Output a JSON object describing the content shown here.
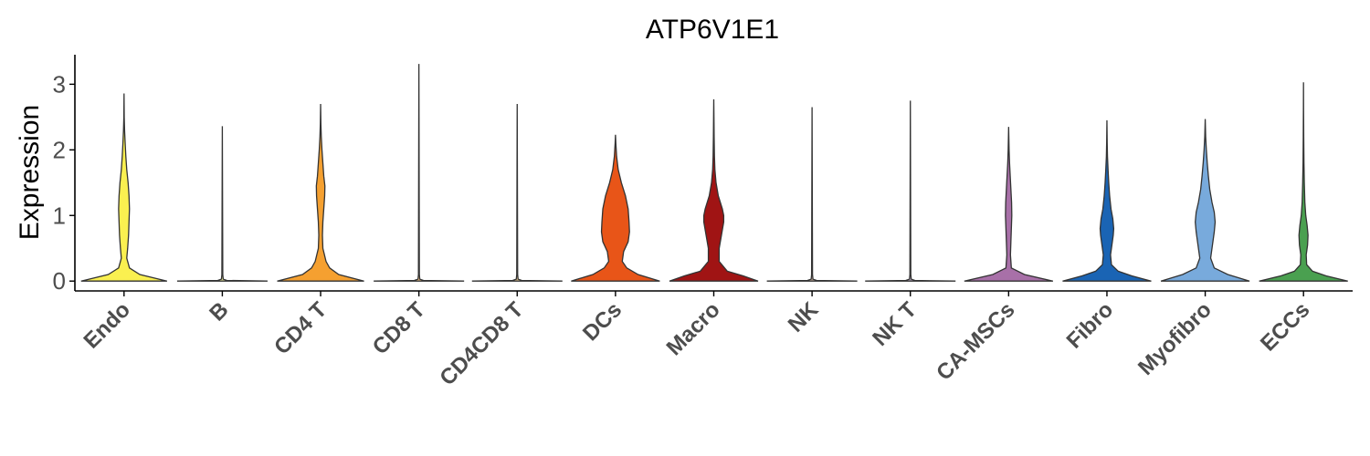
{
  "chart_data": {
    "type": "violin",
    "title": "ATP6V1E1",
    "xlabel": "",
    "ylabel": "Expression",
    "ylim": [
      -0.15,
      3.45
    ],
    "yticks": [
      0,
      1,
      2,
      3
    ],
    "grid": false,
    "legend": "none",
    "categories": [
      {
        "name": "Endo",
        "color": "#FAF050",
        "max": 2.86,
        "profile": [
          [
            0,
            0.95
          ],
          [
            0.1,
            0.35
          ],
          [
            0.2,
            0.12
          ],
          [
            0.35,
            0.06
          ],
          [
            0.5,
            0.08
          ],
          [
            0.7,
            0.1
          ],
          [
            0.9,
            0.11
          ],
          [
            1.1,
            0.12
          ],
          [
            1.3,
            0.11
          ],
          [
            1.5,
            0.09
          ],
          [
            1.7,
            0.06
          ],
          [
            1.9,
            0.04
          ],
          [
            2.1,
            0.025
          ],
          [
            2.3,
            0.012
          ],
          [
            2.5,
            0.004
          ],
          [
            2.86,
            0
          ]
        ]
      },
      {
        "name": "B",
        "color": "#F0F0A0",
        "max": 2.36,
        "profile": [
          [
            0,
            1.0
          ],
          [
            0.01,
            0.1
          ],
          [
            0.03,
            0.02
          ],
          [
            0.1,
            0.01
          ],
          [
            2.36,
            0
          ]
        ]
      },
      {
        "name": "CD4 T",
        "color": "#F5A030",
        "max": 2.7,
        "profile": [
          [
            0,
            0.96
          ],
          [
            0.1,
            0.4
          ],
          [
            0.2,
            0.2
          ],
          [
            0.3,
            0.12
          ],
          [
            0.5,
            0.05
          ],
          [
            0.7,
            0.04
          ],
          [
            0.9,
            0.05
          ],
          [
            1.1,
            0.07
          ],
          [
            1.3,
            0.09
          ],
          [
            1.45,
            0.095
          ],
          [
            1.6,
            0.07
          ],
          [
            1.8,
            0.05
          ],
          [
            2.0,
            0.03
          ],
          [
            2.2,
            0.015
          ],
          [
            2.4,
            0.006
          ],
          [
            2.7,
            0
          ]
        ]
      },
      {
        "name": "CD8 T",
        "color": "#F0C080",
        "max": 3.31,
        "profile": [
          [
            0,
            1.0
          ],
          [
            0.01,
            0.1
          ],
          [
            0.03,
            0.02
          ],
          [
            0.1,
            0.01
          ],
          [
            3.31,
            0
          ]
        ]
      },
      {
        "name": "CD4CD8 T",
        "color": "#E8C890",
        "max": 2.7,
        "profile": [
          [
            0,
            1.0
          ],
          [
            0.01,
            0.1
          ],
          [
            0.03,
            0.02
          ],
          [
            0.1,
            0.01
          ],
          [
            2.7,
            0
          ]
        ]
      },
      {
        "name": "DCs",
        "color": "#E85518",
        "max": 2.23,
        "profile": [
          [
            0,
            0.98
          ],
          [
            0.1,
            0.5
          ],
          [
            0.2,
            0.25
          ],
          [
            0.3,
            0.15
          ],
          [
            0.45,
            0.18
          ],
          [
            0.6,
            0.28
          ],
          [
            0.75,
            0.31
          ],
          [
            0.9,
            0.3
          ],
          [
            1.1,
            0.28
          ],
          [
            1.3,
            0.22
          ],
          [
            1.5,
            0.13
          ],
          [
            1.7,
            0.06
          ],
          [
            1.9,
            0.025
          ],
          [
            2.1,
            0.008
          ],
          [
            2.23,
            0
          ]
        ]
      },
      {
        "name": "Macro",
        "color": "#A01414",
        "max": 2.77,
        "profile": [
          [
            0,
            0.98
          ],
          [
            0.08,
            0.65
          ],
          [
            0.15,
            0.3
          ],
          [
            0.3,
            0.12
          ],
          [
            0.5,
            0.12
          ],
          [
            0.7,
            0.17
          ],
          [
            0.9,
            0.22
          ],
          [
            1.0,
            0.22
          ],
          [
            1.1,
            0.19
          ],
          [
            1.3,
            0.1
          ],
          [
            1.5,
            0.05
          ],
          [
            1.7,
            0.025
          ],
          [
            1.9,
            0.015
          ],
          [
            2.2,
            0.008
          ],
          [
            2.5,
            0.004
          ],
          [
            2.77,
            0
          ]
        ]
      },
      {
        "name": "NK",
        "color": "#C8B0A0",
        "max": 2.65,
        "profile": [
          [
            0,
            1.0
          ],
          [
            0.01,
            0.1
          ],
          [
            0.03,
            0.02
          ],
          [
            0.1,
            0.01
          ],
          [
            2.65,
            0
          ]
        ]
      },
      {
        "name": "NK T",
        "color": "#B8A8C0",
        "max": 2.75,
        "profile": [
          [
            0,
            1.0
          ],
          [
            0.01,
            0.1
          ],
          [
            0.03,
            0.02
          ],
          [
            0.1,
            0.01
          ],
          [
            2.75,
            0
          ]
        ]
      },
      {
        "name": "CA-MSCs",
        "color": "#A870A8",
        "max": 2.35,
        "profile": [
          [
            0,
            0.98
          ],
          [
            0.1,
            0.35
          ],
          [
            0.2,
            0.06
          ],
          [
            0.4,
            0.04
          ],
          [
            0.6,
            0.05
          ],
          [
            0.8,
            0.06
          ],
          [
            1.0,
            0.07
          ],
          [
            1.2,
            0.065
          ],
          [
            1.4,
            0.05
          ],
          [
            1.6,
            0.035
          ],
          [
            1.8,
            0.02
          ],
          [
            2.0,
            0.01
          ],
          [
            2.35,
            0
          ]
        ]
      },
      {
        "name": "Fibro",
        "color": "#1A64B4",
        "max": 2.45,
        "profile": [
          [
            0,
            0.98
          ],
          [
            0.08,
            0.55
          ],
          [
            0.15,
            0.25
          ],
          [
            0.25,
            0.1
          ],
          [
            0.4,
            0.08
          ],
          [
            0.55,
            0.11
          ],
          [
            0.7,
            0.14
          ],
          [
            0.8,
            0.15
          ],
          [
            0.95,
            0.13
          ],
          [
            1.1,
            0.09
          ],
          [
            1.3,
            0.06
          ],
          [
            1.5,
            0.04
          ],
          [
            1.7,
            0.025
          ],
          [
            1.9,
            0.012
          ],
          [
            2.1,
            0.006
          ],
          [
            2.45,
            0
          ]
        ]
      },
      {
        "name": "Myofibro",
        "color": "#78AADC",
        "max": 2.47,
        "profile": [
          [
            0,
            0.98
          ],
          [
            0.1,
            0.5
          ],
          [
            0.2,
            0.2
          ],
          [
            0.35,
            0.12
          ],
          [
            0.55,
            0.16
          ],
          [
            0.75,
            0.2
          ],
          [
            0.9,
            0.22
          ],
          [
            1.05,
            0.2
          ],
          [
            1.2,
            0.15
          ],
          [
            1.4,
            0.1
          ],
          [
            1.6,
            0.07
          ],
          [
            1.8,
            0.045
          ],
          [
            2.0,
            0.025
          ],
          [
            2.2,
            0.01
          ],
          [
            2.47,
            0
          ]
        ]
      },
      {
        "name": "ECCs",
        "color": "#4AA050",
        "max": 3.03,
        "profile": [
          [
            0,
            0.98
          ],
          [
            0.08,
            0.5
          ],
          [
            0.15,
            0.2
          ],
          [
            0.25,
            0.07
          ],
          [
            0.4,
            0.06
          ],
          [
            0.55,
            0.09
          ],
          [
            0.7,
            0.1
          ],
          [
            0.85,
            0.08
          ],
          [
            1.0,
            0.05
          ],
          [
            1.2,
            0.03
          ],
          [
            1.5,
            0.018
          ],
          [
            1.8,
            0.01
          ],
          [
            2.2,
            0.005
          ],
          [
            2.6,
            0.002
          ],
          [
            3.03,
            0
          ]
        ]
      }
    ]
  }
}
